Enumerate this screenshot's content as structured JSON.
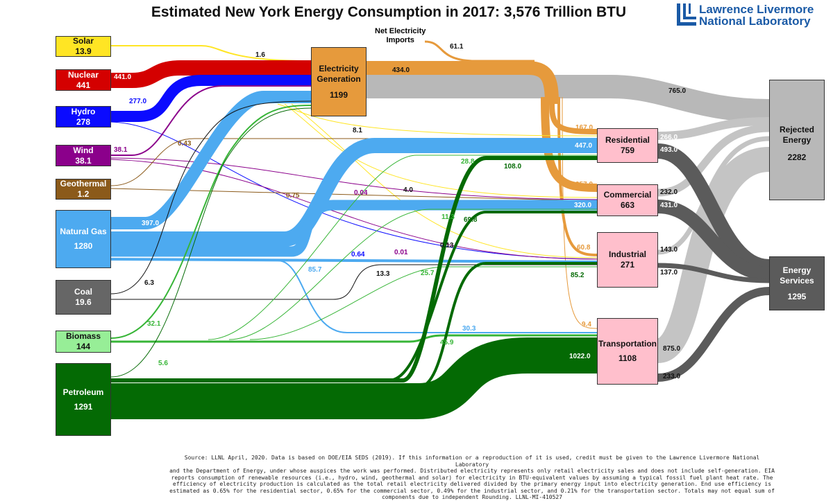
{
  "title": "Estimated New York Energy Consumption in 2017: 3,576 Trillion BTU",
  "logo": {
    "line1": "Lawrence Livermore",
    "line2": "National Laboratory"
  },
  "colors": {
    "solar": "#ffe524",
    "nuclear": "#d40000",
    "hydro": "#0b0bff",
    "wind": "#8b008b",
    "geothermal": "#8b5a1a",
    "gas": "#4daaf0",
    "coal": "#555555",
    "biomass": "#37b537",
    "petroleum": "#046a04",
    "electricity": "#e69a3c",
    "rejected": "#b5b5b5",
    "services": "#5b5b5b",
    "sector_box": "#ffbfcc"
  },
  "sources": [
    {
      "id": "solar",
      "name": "Solar",
      "value": "13.9"
    },
    {
      "id": "nuclear",
      "name": "Nuclear",
      "value": "441"
    },
    {
      "id": "hydro",
      "name": "Hydro",
      "value": "278"
    },
    {
      "id": "wind",
      "name": "Wind",
      "value": "38.1"
    },
    {
      "id": "geothermal",
      "name": "Geothermal",
      "value": "1.2"
    },
    {
      "id": "gas",
      "name": "Natural Gas",
      "value": "1280"
    },
    {
      "id": "coal",
      "name": "Coal",
      "value": "19.6"
    },
    {
      "id": "biomass",
      "name": "Biomass",
      "value": "144"
    },
    {
      "id": "petroleum",
      "name": "Petroleum",
      "value": "1291"
    }
  ],
  "electricity": {
    "name_line1": "Electricity",
    "name_line2": "Generation",
    "value": "1199"
  },
  "imports": {
    "line1": "Net Electricity",
    "line2": "Imports"
  },
  "sectors": [
    {
      "id": "residential",
      "name": "Residential",
      "value": "759"
    },
    {
      "id": "commercial",
      "name": "Commercial",
      "value": "663"
    },
    {
      "id": "industrial",
      "name": "Industrial",
      "value": "271"
    },
    {
      "id": "transportation",
      "name": "Transportation",
      "value": "1108"
    }
  ],
  "outputs": [
    {
      "id": "rejected",
      "name_line1": "Rejected",
      "name_line2": "Energy",
      "value": "2282"
    },
    {
      "id": "services",
      "name_line1": "Energy",
      "name_line2": "Services",
      "value": "1295"
    }
  ],
  "flows": [
    {
      "from": "Solar",
      "to": "Electricity Generation",
      "value": "1.6"
    },
    {
      "from": "Nuclear",
      "to": "Electricity Generation",
      "value": "441.0"
    },
    {
      "from": "Hydro",
      "to": "Electricity Generation",
      "value": "277.0"
    },
    {
      "from": "Wind",
      "to": "Electricity Generation",
      "value": "38.1"
    },
    {
      "from": "Geothermal",
      "to": "Residential",
      "value": "0.43"
    },
    {
      "from": "Geothermal",
      "to": "Commercial",
      "value": "0.75"
    },
    {
      "from": "Natural Gas",
      "to": "Electricity Generation",
      "value": "397.0"
    },
    {
      "from": "Natural Gas",
      "to": "Residential",
      "value": "447.0"
    },
    {
      "from": "Natural Gas",
      "to": "Commercial",
      "value": "320.0"
    },
    {
      "from": "Natural Gas",
      "to": "Industrial",
      "value": "85.7"
    },
    {
      "from": "Natural Gas",
      "to": "Transportation",
      "value": "30.3"
    },
    {
      "from": "Coal",
      "to": "Electricity Generation",
      "value": "6.3"
    },
    {
      "from": "Coal",
      "to": "Industrial",
      "value": "13.3"
    },
    {
      "from": "Biomass",
      "to": "Electricity Generation",
      "value": "32.1"
    },
    {
      "from": "Biomass",
      "to": "Residential",
      "value": "28.8"
    },
    {
      "from": "Biomass",
      "to": "Commercial",
      "value": "11.3"
    },
    {
      "from": "Biomass",
      "to": "Industrial",
      "value": "25.7"
    },
    {
      "from": "Biomass",
      "to": "Transportation",
      "value": "45.9"
    },
    {
      "from": "Petroleum",
      "to": "Electricity Generation",
      "value": "5.6"
    },
    {
      "from": "Petroleum",
      "to": "Residential",
      "value": "108.0"
    },
    {
      "from": "Petroleum",
      "to": "Commercial",
      "value": "69.8"
    },
    {
      "from": "Petroleum",
      "to": "Industrial",
      "value": "85.2"
    },
    {
      "from": "Petroleum",
      "to": "Transportation",
      "value": "1022.0"
    },
    {
      "from": "Solar",
      "to": "Residential",
      "value": "8.1"
    },
    {
      "from": "Solar",
      "to": "Commercial",
      "value": "4.0"
    },
    {
      "from": "Solar",
      "to": "Industrial",
      "value": "0.13"
    },
    {
      "from": "Wind",
      "to": "Commercial",
      "value": "0.04"
    },
    {
      "from": "Wind",
      "to": "Industrial",
      "value": "0.01"
    },
    {
      "from": "Hydro",
      "to": "Industrial",
      "value": "0.64"
    },
    {
      "from": "Net Electricity Imports",
      "to": "Electricity Generation",
      "value": "61.1"
    },
    {
      "from": "Electricity Generation",
      "to": "Residential",
      "value": "167.0"
    },
    {
      "from": "Electricity Generation",
      "to": "Commercial",
      "value": "257.0"
    },
    {
      "from": "Electricity Generation",
      "to": "Industrial",
      "value": "60.8"
    },
    {
      "from": "Electricity Generation",
      "to": "Transportation",
      "value": "9.4"
    },
    {
      "from": "Electricity Generation",
      "to": "Rejected Energy",
      "value": "765.0"
    },
    {
      "from": "Electricity Generation",
      "to": "Distribution",
      "value": "434.0"
    },
    {
      "from": "Residential",
      "to": "Rejected Energy",
      "value": "266.0"
    },
    {
      "from": "Residential",
      "to": "Energy Services",
      "value": "493.0"
    },
    {
      "from": "Commercial",
      "to": "Rejected Energy",
      "value": "232.0"
    },
    {
      "from": "Commercial",
      "to": "Energy Services",
      "value": "431.0"
    },
    {
      "from": "Industrial",
      "to": "Rejected Energy",
      "value": "143.0"
    },
    {
      "from": "Industrial",
      "to": "Energy Services",
      "value": "137.0"
    },
    {
      "from": "Transportation",
      "to": "Rejected Energy",
      "value": "875.0"
    },
    {
      "from": "Transportation",
      "to": "Energy Services",
      "value": "233.0"
    }
  ],
  "footnote": [
    "Source: LLNL April, 2020. Data is based on DOE/EIA SEDS (2019). If this information or a reproduction of it is used, credit must be given to the Lawrence Livermore National Laboratory",
    "and the Department of Energy, under whose auspices the work was performed. Distributed electricity represents only retail electricity sales and does not include self-generation. EIA",
    "reports consumption of renewable resources (i.e., hydro, wind, geothermal and solar) for electricity in BTU-equivalent values by assuming a typical fossil fuel plant heat rate. The",
    "efficiency of electricity production is calculated as the total retail electricity delivered divided by the primary energy input into electricity generation. End use efficiency is",
    "estimated as 0.65% for the residential sector, 0.65% for the commercial sector, 0.49% for the industrial sector, and 0.21% for the transportation sector. Totals may not equal sum of",
    "components due to independent Rounding. LLNL-MI-410527"
  ]
}
